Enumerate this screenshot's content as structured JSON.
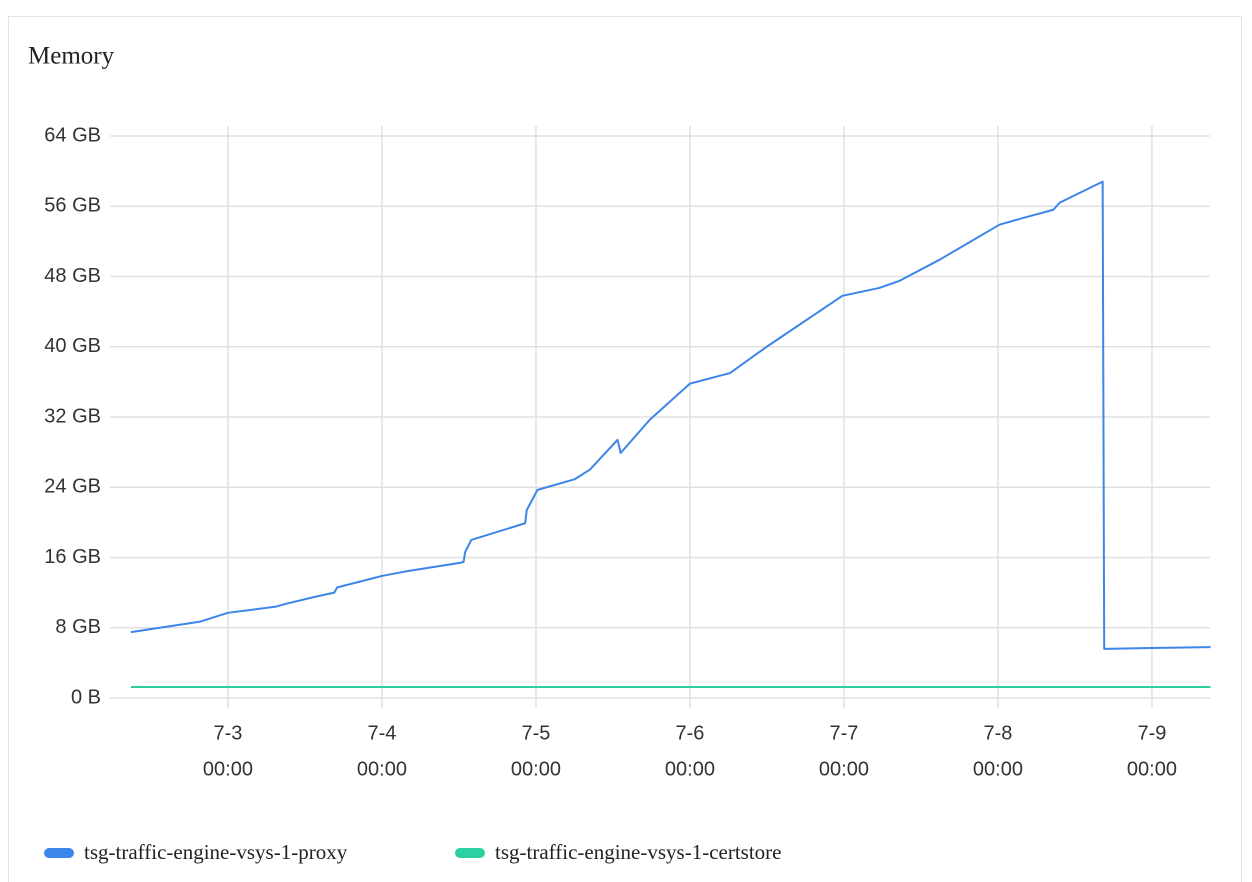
{
  "chart_data": {
    "type": "line",
    "title": "Memory",
    "x": [
      2.37,
      2.82,
      3.0,
      3.31,
      3.37,
      3.56,
      3.69,
      3.71,
      4.0,
      4.15,
      4.51,
      4.53,
      4.54,
      4.58,
      4.93,
      4.94,
      5.01,
      5.25,
      5.35,
      5.53,
      5.55,
      5.74,
      6.0,
      6.26,
      6.49,
      6.99,
      7.23,
      7.36,
      7.62,
      8.01,
      8.17,
      8.36,
      8.4,
      8.68,
      8.69,
      8.99,
      9.38
    ],
    "series": [
      {
        "name": "tsg-traffic-engine-vsys-1-proxy",
        "color": "#3d85e8",
        "values": [
          7.5,
          8.7,
          9.7,
          10.4,
          10.7,
          11.5,
          12.0,
          12.6,
          13.9,
          14.4,
          15.4,
          15.5,
          16.6,
          18.0,
          19.9,
          21.4,
          23.7,
          24.9,
          26.0,
          29.4,
          27.9,
          31.7,
          35.8,
          37.0,
          39.9,
          45.8,
          46.7,
          47.5,
          49.9,
          53.9,
          54.7,
          55.6,
          56.4,
          58.8,
          5.6,
          5.7,
          5.8
        ]
      },
      {
        "name": "tsg-traffic-engine-vsys-1-certstore",
        "color": "#2bd1a0",
        "values": [
          1.25,
          1.25,
          1.25,
          1.25,
          1.25,
          1.25,
          1.25,
          1.25,
          1.25,
          1.25,
          1.25,
          1.25,
          1.25,
          1.25,
          1.25,
          1.25,
          1.25,
          1.25,
          1.25,
          1.25,
          1.25,
          1.25,
          1.25,
          1.25,
          1.25,
          1.25,
          1.25,
          1.25,
          1.25,
          1.25,
          1.25,
          1.25,
          1.25,
          1.25,
          1.25,
          1.25,
          1.25
        ]
      }
    ],
    "xlim": [
      2.234,
      9.377
    ],
    "xticks": [
      {
        "value": 3,
        "label": [
          "7-3",
          "00:00"
        ]
      },
      {
        "value": 4,
        "label": [
          "7-4",
          "00:00"
        ]
      },
      {
        "value": 5,
        "label": [
          "7-5",
          "00:00"
        ]
      },
      {
        "value": 6,
        "label": [
          "7-6",
          "00:00"
        ]
      },
      {
        "value": 7,
        "label": [
          "7-7",
          "00:00"
        ]
      },
      {
        "value": 8,
        "label": [
          "7-8",
          "00:00"
        ]
      },
      {
        "value": 9,
        "label": [
          "7-9",
          "00:00"
        ]
      }
    ],
    "ylim": [
      0,
      64
    ],
    "yticks": [
      {
        "value": 0,
        "label": "0 B"
      },
      {
        "value": 8,
        "label": "8 GB"
      },
      {
        "value": 16,
        "label": "16 GB"
      },
      {
        "value": 24,
        "label": "24 GB"
      },
      {
        "value": 32,
        "label": "32 GB"
      },
      {
        "value": 40,
        "label": "40 GB"
      },
      {
        "value": 48,
        "label": "48 GB"
      },
      {
        "value": 56,
        "label": "56 GB"
      },
      {
        "value": 64,
        "label": "64 GB"
      }
    ],
    "grid": true
  }
}
